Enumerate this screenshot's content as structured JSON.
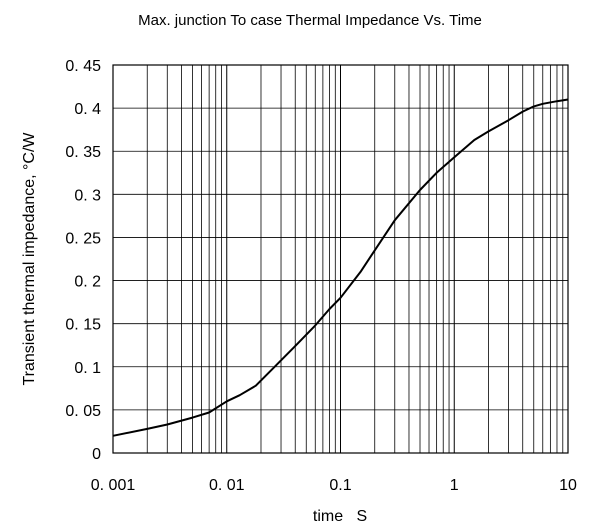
{
  "chart_data": {
    "type": "line",
    "title": "Max. junction To case Thermal Impedance Vs. Time",
    "xlabel": "time   S",
    "ylabel": "Transient thermal impedance, °C/W",
    "x_scale": "log",
    "xlim": [
      0.001,
      10
    ],
    "ylim": [
      0,
      0.45
    ],
    "grid": true,
    "x_tick_labels": [
      "0. 001",
      "0. 01",
      "0.1",
      "1",
      "10"
    ],
    "y_tick_labels": [
      "0",
      "0. 05",
      "0. 1",
      "0. 15",
      "0. 2",
      "0. 25",
      "0. 3",
      "0. 35",
      "0. 4",
      "0. 45"
    ],
    "series": [
      {
        "x": [
          0.001,
          0.002,
          0.003,
          0.005,
          0.007,
          0.01,
          0.013,
          0.018,
          0.025,
          0.04,
          0.06,
          0.08,
          0.1,
          0.15,
          0.2,
          0.3,
          0.5,
          0.7,
          1.0,
          1.5,
          2.0,
          3.0,
          4.0,
          5.0,
          6.0,
          8.0,
          10.0
        ],
        "y": [
          0.02,
          0.028,
          0.033,
          0.041,
          0.047,
          0.06,
          0.067,
          0.078,
          0.097,
          0.124,
          0.148,
          0.167,
          0.18,
          0.21,
          0.235,
          0.27,
          0.305,
          0.325,
          0.343,
          0.363,
          0.373,
          0.386,
          0.396,
          0.402,
          0.405,
          0.408,
          0.41
        ],
        "color": "#000000"
      }
    ]
  }
}
